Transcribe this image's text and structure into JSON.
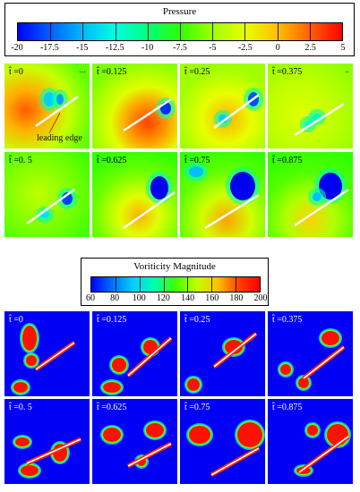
{
  "pressure": {
    "title": "Pressure",
    "ticks": [
      "-20",
      "-17.5",
      "-15",
      "-12.5",
      "-10",
      "-7.5",
      "-5",
      "-2.5",
      "0",
      "2.5",
      "5"
    ],
    "gradient": [
      "#0000ff",
      "#0060ff",
      "#00b8ff",
      "#00ffe0",
      "#00ff80",
      "#30ff00",
      "#a0ff00",
      "#e8ff00",
      "#ffc000",
      "#ff6000",
      "#ff0000"
    ],
    "panels": [
      {
        "label": "t̂ =0",
        "annotation": "leading edge",
        "extra": "..."
      },
      {
        "label": "t̂ =0.125"
      },
      {
        "label": "t̂ =0.25"
      },
      {
        "label": "t̂ =0.375",
        "extra": ".."
      },
      {
        "label": "t̂ =0. 5"
      },
      {
        "label": "t̂ =0.625"
      },
      {
        "label": "t̂ =0.75"
      },
      {
        "label": "t̂ =0.875"
      }
    ]
  },
  "vorticity": {
    "title": "Voriticity Magnitude",
    "ticks": [
      "60",
      "80",
      "100",
      "120",
      "140",
      "160",
      "180",
      "200"
    ],
    "gradient": [
      "#0000ff",
      "#0070ff",
      "#00d0ff",
      "#00ffb0",
      "#40ff00",
      "#c0ff00",
      "#ffc000",
      "#ff4000",
      "#ff0000"
    ],
    "panels": [
      {
        "label": "t̂ =0"
      },
      {
        "label": "t̂ =0.125"
      },
      {
        "label": "t̂ =0.25"
      },
      {
        "label": "t̂ =0.375"
      },
      {
        "label": "t̂ =0. 5"
      },
      {
        "label": "t̂ =0.625"
      },
      {
        "label": "t̂ =0.75"
      },
      {
        "label": "t̂ =0.875"
      }
    ]
  },
  "colors": {
    "plate": "#ffffff",
    "vort_background": "#0000f5",
    "low_pressure": "#0000ff",
    "high_pressure": "#ff3000"
  }
}
